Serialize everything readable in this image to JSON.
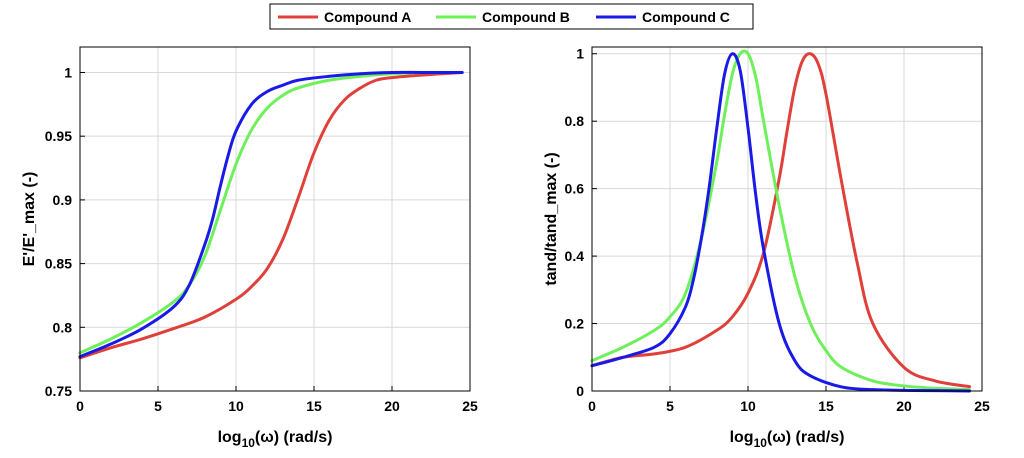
{
  "legend": {
    "entries": [
      {
        "name": "Compound A",
        "color": "#e0403a"
      },
      {
        "name": "Compound B",
        "color": "#6ef05a"
      },
      {
        "name": "Compound C",
        "color": "#1a1ae6"
      }
    ],
    "placement": "top-center"
  },
  "chart_data": [
    {
      "type": "line",
      "title": "",
      "xlabel": "log10(ω) (rad/s)",
      "xlabel_base": "log",
      "xlabel_sub": "10",
      "xlabel_rest": "(ω) (rad/s)",
      "ylabel": "E'/E'_max (-)",
      "xlim": [
        0,
        25
      ],
      "ylim": [
        0.75,
        1.02
      ],
      "xticks": [
        0,
        5,
        10,
        15,
        20,
        25
      ],
      "xtick_labels": [
        "0",
        "5",
        "10",
        "15",
        "20",
        "25"
      ],
      "yticks": [
        0.75,
        0.8,
        0.85,
        0.9,
        0.95,
        1
      ],
      "ytick_labels": [
        "0.75",
        "0.8",
        "0.85",
        "0.9",
        "0.95",
        "1"
      ],
      "grid": true,
      "series": [
        {
          "name": "Compound A",
          "x": [
            0,
            2,
            4,
            6,
            8,
            10,
            11,
            12,
            13,
            14,
            15,
            16,
            17,
            18,
            19,
            20,
            22,
            24.5
          ],
          "y": [
            0.776,
            0.784,
            0.791,
            0.799,
            0.808,
            0.822,
            0.832,
            0.846,
            0.869,
            0.902,
            0.937,
            0.963,
            0.979,
            0.988,
            0.994,
            0.996,
            0.998,
            1.0
          ]
        },
        {
          "name": "Compound B",
          "x": [
            0,
            2,
            4,
            6,
            7,
            8,
            9,
            10,
            11,
            12,
            13,
            14,
            16,
            18,
            20,
            22,
            24.5
          ],
          "y": [
            0.78,
            0.791,
            0.804,
            0.82,
            0.833,
            0.856,
            0.892,
            0.928,
            0.955,
            0.972,
            0.982,
            0.988,
            0.994,
            0.997,
            0.999,
            1.0,
            1.0
          ]
        },
        {
          "name": "Compound C",
          "x": [
            0,
            2,
            4,
            6,
            7,
            8,
            8.5,
            9,
            9.5,
            10,
            11,
            12,
            13,
            14,
            16,
            18,
            20,
            22,
            24.5
          ],
          "y": [
            0.777,
            0.787,
            0.799,
            0.816,
            0.833,
            0.865,
            0.885,
            0.911,
            0.935,
            0.954,
            0.975,
            0.985,
            0.99,
            0.994,
            0.997,
            0.999,
            1.0,
            1.0,
            1.0
          ]
        }
      ]
    },
    {
      "type": "line",
      "title": "",
      "xlabel": "log10(ω) (rad/s)",
      "xlabel_base": "log",
      "xlabel_sub": "10",
      "xlabel_rest": "(ω) (rad/s)",
      "ylabel": "tand/tand_max (-)",
      "xlim": [
        0,
        25
      ],
      "ylim": [
        0,
        1.02
      ],
      "xticks": [
        0,
        5,
        10,
        15,
        20,
        25
      ],
      "xtick_labels": [
        "0",
        "5",
        "10",
        "15",
        "20",
        "25"
      ],
      "yticks": [
        0,
        0.2,
        0.4,
        0.6,
        0.8,
        1
      ],
      "ytick_labels": [
        "0",
        "0.2",
        "0.4",
        "0.6",
        "0.8",
        "1"
      ],
      "grid": true,
      "series": [
        {
          "name": "Compound A",
          "x": [
            0,
            2,
            4,
            6,
            8,
            9,
            10,
            11,
            12,
            12.5,
            13,
            13.5,
            14,
            14.5,
            15,
            16,
            17,
            18,
            20,
            22,
            24.2
          ],
          "y": [
            0.075,
            0.1,
            0.11,
            0.13,
            0.18,
            0.22,
            0.29,
            0.41,
            0.63,
            0.77,
            0.9,
            0.98,
            1.0,
            0.97,
            0.88,
            0.62,
            0.38,
            0.2,
            0.07,
            0.03,
            0.013
          ]
        },
        {
          "name": "Compound B",
          "x": [
            0,
            2,
            4,
            5,
            6,
            7,
            8,
            8.5,
            9,
            9.5,
            10,
            10.5,
            11,
            12,
            13,
            14,
            15,
            16,
            18,
            20,
            22,
            24.2
          ],
          "y": [
            0.09,
            0.13,
            0.18,
            0.22,
            0.29,
            0.45,
            0.68,
            0.82,
            0.94,
            1.0,
            1.0,
            0.93,
            0.8,
            0.55,
            0.34,
            0.2,
            0.12,
            0.07,
            0.03,
            0.015,
            0.008,
            0.004
          ]
        },
        {
          "name": "Compound C",
          "x": [
            0,
            2,
            4,
            5,
            6,
            6.5,
            7,
            7.5,
            8,
            8.5,
            9,
            9.5,
            10,
            10.5,
            11,
            12,
            13,
            14,
            16,
            18,
            20,
            22,
            24.2
          ],
          "y": [
            0.075,
            0.1,
            0.13,
            0.17,
            0.25,
            0.33,
            0.45,
            0.6,
            0.78,
            0.94,
            1.0,
            0.95,
            0.78,
            0.58,
            0.42,
            0.2,
            0.09,
            0.045,
            0.012,
            0.004,
            0.002,
            0.001,
            0.0
          ]
        }
      ]
    }
  ]
}
